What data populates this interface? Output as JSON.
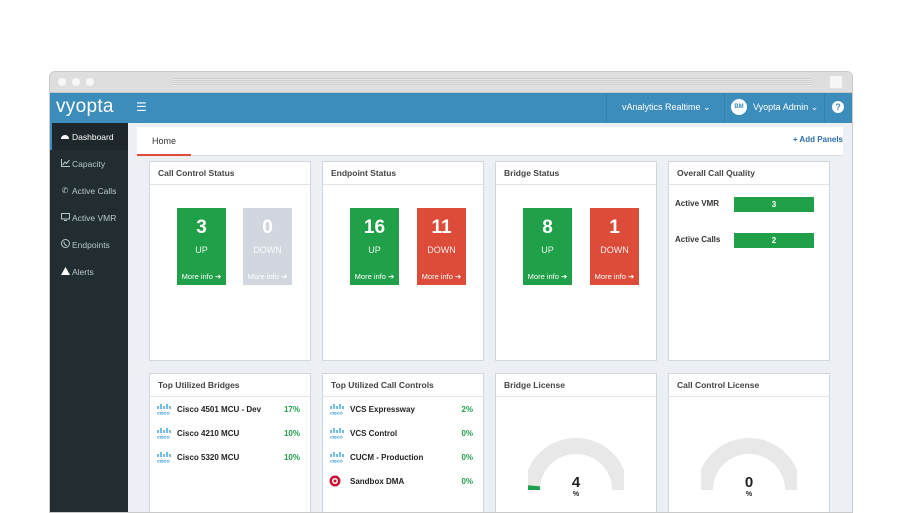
{
  "app": {
    "logo": "vyopta"
  },
  "header": {
    "menu_icon": "hamburger-icon",
    "analytics_menu": "vAnalytics Realtime ⌄",
    "user_initials": "BM",
    "user_name": "Vyopta Admin ⌄",
    "help": "?"
  },
  "sidebar": {
    "items": [
      {
        "label": "Dashboard",
        "icon": "dashboard-icon"
      },
      {
        "label": "Capacity",
        "icon": "line-chart-icon"
      },
      {
        "label": "Active Calls",
        "icon": "phone-icon"
      },
      {
        "label": "Active VMR",
        "icon": "monitor-icon"
      },
      {
        "label": "Endpoints",
        "icon": "phone-circle-icon"
      },
      {
        "label": "Alerts",
        "icon": "warning-icon"
      }
    ]
  },
  "tabs": {
    "home": "Home",
    "add_panels": "+ Add Panels"
  },
  "panels": {
    "call_control_status": {
      "title": "Call Control Status",
      "up": {
        "value": "3",
        "label": "UP",
        "more": "More info ➔"
      },
      "down": {
        "value": "0",
        "label": "DOWN",
        "more": "More info ➔"
      }
    },
    "endpoint_status": {
      "title": "Endpoint Status",
      "up": {
        "value": "16",
        "label": "UP",
        "more": "More info ➔"
      },
      "down": {
        "value": "11",
        "label": "DOWN",
        "more": "More info ➔"
      }
    },
    "bridge_status": {
      "title": "Bridge Status",
      "up": {
        "value": "8",
        "label": "UP",
        "more": "More info ➔"
      },
      "down": {
        "value": "1",
        "label": "DOWN",
        "more": "More info ➔"
      }
    },
    "overall_call_quality": {
      "title": "Overall Call Quality",
      "rows": [
        {
          "label": "Active VMR",
          "value": "3"
        },
        {
          "label": "Active Calls",
          "value": "2"
        }
      ]
    },
    "top_bridges": {
      "title": "Top Utilized Bridges",
      "rows": [
        {
          "name": "Cisco 4501 MCU - Dev",
          "pct": "17%"
        },
        {
          "name": "Cisco 4210 MCU",
          "pct": "10%"
        },
        {
          "name": "Cisco 5320 MCU",
          "pct": "10%"
        }
      ]
    },
    "top_call_controls": {
      "title": "Top Utilized Call Controls",
      "rows": [
        {
          "name": "VCS Expressway",
          "pct": "2%"
        },
        {
          "name": "VCS Control",
          "pct": "0%"
        },
        {
          "name": "CUCM - Production",
          "pct": "0%"
        },
        {
          "name": "Sandbox DMA",
          "pct": "0%"
        }
      ]
    },
    "bridge_license": {
      "title": "Bridge License",
      "value": "4",
      "unit": "%"
    },
    "call_control_license": {
      "title": "Call Control License",
      "value": "0",
      "unit": "%"
    }
  },
  "colors": {
    "topbar": "#3c8dbc",
    "sidebar": "#222d32",
    "up": "#21a04a",
    "down": "#dd4b39",
    "down_inactive": "#d2d6de",
    "gauge_track": "#e8e8e8"
  }
}
